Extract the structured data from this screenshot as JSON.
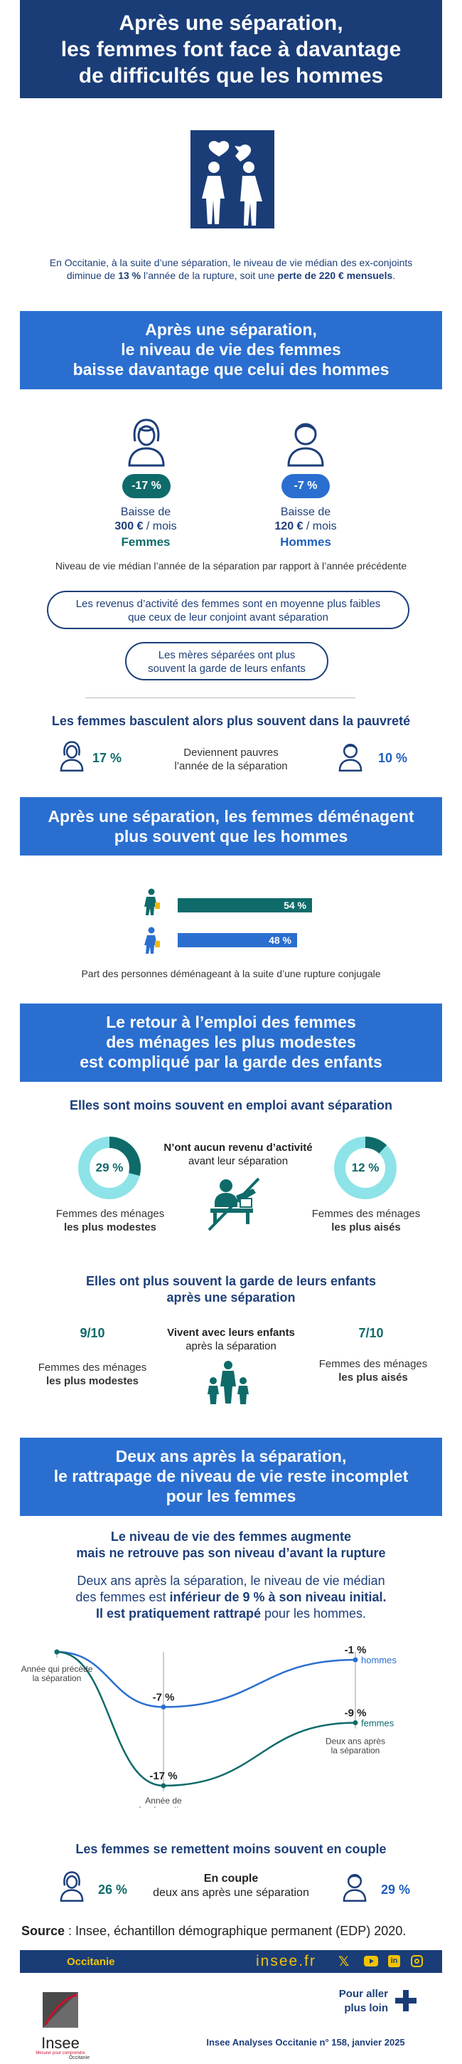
{
  "header": {
    "title_line1": "Après une séparation,",
    "title_line2": "les femmes font face à davantage",
    "title_line3": "de difficultés que les hommes"
  },
  "intro": {
    "line1": "En Occitanie, à la suite d’une séparation, le niveau de vie médian des ex-conjoints",
    "line2_a": "diminue de ",
    "line2_b": "13 %",
    "line2_c": " l’année de la rupture, soit une ",
    "line2_d": "perte de 220 € mensuels",
    "line2_e": "."
  },
  "section1": {
    "title_line1": "Après une séparation,",
    "title_line2": "le niveau de vie des femmes",
    "title_line3": "baisse davantage que celui des hommes",
    "women": {
      "badge": "-17 %",
      "line1": "Baisse de",
      "amount": "300 €",
      "unit": " / mois",
      "label": "Femmes"
    },
    "men": {
      "badge": "-7 %",
      "line1": "Baisse de",
      "amount": "120 €",
      "unit": " / mois",
      "label": "Hommes"
    },
    "caption": "Niveau de vie médian l’année de la séparation par rapport à l’année précédente",
    "pill1_line1": "Les revenus d’activité des femmes sont en moyenne plus faibles",
    "pill1_line2": "que ceux de leur conjoint avant séparation",
    "pill2_line1": "Les mères séparées ont plus",
    "pill2_line2": "souvent la garde de leurs enfants"
  },
  "poverty": {
    "title": "Les femmes basculent alors plus souvent dans la pauvreté",
    "women_value": "17 %",
    "men_value": "10 %",
    "label_line1": "Deviennent pauvres",
    "label_line2": "l’année de la séparation"
  },
  "section2": {
    "title_line1": "Après une séparation, les femmes déménagent",
    "title_line2": "plus souvent que les hommes",
    "women_pct": 54,
    "women_label": "54 %",
    "men_pct": 48,
    "men_label": "48 %",
    "caption": "Part des personnes déménageant à la suite d’une rupture conjugale"
  },
  "section3": {
    "title_line1": "Le retour à l’emploi des femmes",
    "title_line2": "des ménages les plus modestes",
    "title_line3": "est compliqué par la garde des enfants",
    "employ_title": "Elles sont moins souvent en emploi avant séparation",
    "modest_pct": 29,
    "modest_label": "29 %",
    "wealthy_pct": 12,
    "wealthy_label": "12 %",
    "center_bold": "N’ont aucun revenu d’activité",
    "center_sub": "avant leur séparation",
    "modest_line1": "Femmes des ménages",
    "modest_line2": "les plus modestes",
    "wealthy_line1": "Femmes des ménages",
    "wealthy_line2": "les plus aisés",
    "custody_title_line1": "Elles ont plus souvent la garde de leurs enfants",
    "custody_title_line2": "après une séparation",
    "custody_modest": "9/10",
    "custody_wealthy": "7/10",
    "custody_center_bold": "Vivent avec leurs enfants",
    "custody_center_sub": "après la séparation"
  },
  "section4": {
    "title_line1": "Deux ans après la séparation,",
    "title_line2": "le rattrapage de niveau de vie reste incomplet",
    "title_line3": "pour les femmes",
    "sub_line1": "Le niveau de vie des femmes augmente",
    "sub_line2": "mais ne retrouve pas son niveau d’avant la rupture",
    "text_line1": "Deux ans après la séparation, le niveau de vie médian",
    "text_line2_a": "des femmes est ",
    "text_line2_b": "inférieur de 9 % à son niveau initial.",
    "text_line3_a": "Il est pratiquement rattrapé",
    "text_line3_b": " pour les hommes."
  },
  "chart_data": {
    "type": "line",
    "title": "",
    "categories": [
      "Année qui précède la séparation",
      "Année de la séparation",
      "Deux ans après la séparation"
    ],
    "series": [
      {
        "name": "hommes",
        "values": [
          0,
          -7,
          -1
        ],
        "labels": [
          "",
          "-7 %",
          "-1 %"
        ]
      },
      {
        "name": "femmes",
        "values": [
          0,
          -17,
          -9
        ],
        "labels": [
          "",
          "-17 %",
          "-9 %"
        ]
      }
    ],
    "ylim": [
      -18,
      1
    ],
    "x_label_before_1": "Année qui précède",
    "x_label_before_2": "la séparation",
    "x_label_year_1": "Année de",
    "x_label_year_2": "la séparation",
    "x_label_after_1": "Deux ans après",
    "x_label_after_2": "la séparation"
  },
  "couple": {
    "title": "Les femmes se remettent moins souvent en couple",
    "women_value": "26 %",
    "men_value": "29 %",
    "label_bold": "En couple",
    "label_sub": "deux ans après une séparation"
  },
  "source": {
    "label": "Source",
    "text": " : Insee, échantillon démographique permanent (EDP) 2020."
  },
  "footer": {
    "region": "Occitanie",
    "site": "insee.fr",
    "more_line1": "Pour aller",
    "more_line2": "plus loin",
    "publication": "Insee Analyses Occitanie n° 158,  janvier 2025",
    "logo_text": "Insee",
    "logo_sub1": "Mesurer pour comprendre",
    "logo_sub2": "Occitanie"
  },
  "colors": {
    "navy": "#1a3d78",
    "blue": "#2a6fd0",
    "teal": "#0e6b6a",
    "light_teal": "#7fe0e6",
    "men_line": "#2a6fd0",
    "women_line": "#0e6b6a"
  }
}
